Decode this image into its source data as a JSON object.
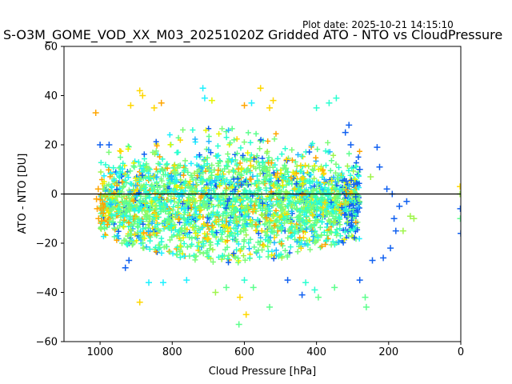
{
  "plot_date": "Plot date: 2025-10-21 14:15:10",
  "chart_data": {
    "type": "scatter",
    "title": "S-O3M_GOME_VOD_XX_M03_20251020Z Gridded ATO - NTO vs CloudPressure",
    "xlabel": "Cloud Pressure [hPa]",
    "ylabel": "ATO - NTO [DU]",
    "xlim": [
      1100,
      0
    ],
    "ylim": [
      -60,
      60
    ],
    "x_inverted": true,
    "xticks": [
      1000,
      800,
      600,
      400,
      200,
      0
    ],
    "yticks": [
      -60,
      -40,
      -20,
      0,
      20,
      40,
      60
    ],
    "xtick_labels": [
      "1000",
      "800",
      "600",
      "400",
      "200",
      "0"
    ],
    "ytick_labels": [
      "−60",
      "−40",
      "−20",
      "0",
      "20",
      "40",
      "60"
    ],
    "reference_line_y": 0,
    "marker": "+",
    "grid": false,
    "colormap_colors": [
      "#ffa500",
      "#ffd700",
      "#e5f500",
      "#9ef54a",
      "#7cfc78",
      "#5cff8c",
      "#2affd0",
      "#1ef0ff",
      "#20b8ff",
      "#1060f0"
    ],
    "bulk_region": {
      "pressure_range": [
        1000,
        280
      ],
      "ato_nto_center": -4,
      "ato_nto_spread_at_center": [
        -28,
        28
      ],
      "ato_nto_spread_at_edges": [
        -18,
        18
      ]
    },
    "points": [
      {
        "x": 890,
        "y": 42,
        "c": "#ffd700"
      },
      {
        "x": 882,
        "y": 40,
        "c": "#ffd700"
      },
      {
        "x": 715,
        "y": 43,
        "c": "#1ef0ff"
      },
      {
        "x": 555,
        "y": 43,
        "c": "#ffd700"
      },
      {
        "x": 710,
        "y": 39,
        "c": "#1ef0ff"
      },
      {
        "x": 690,
        "y": 38,
        "c": "#e5f500"
      },
      {
        "x": 520,
        "y": 38,
        "c": "#ffd700"
      },
      {
        "x": 830,
        "y": 37,
        "c": "#ffa500"
      },
      {
        "x": 850,
        "y": 35,
        "c": "#ffd700"
      },
      {
        "x": 915,
        "y": 36,
        "c": "#ffd700"
      },
      {
        "x": 600,
        "y": 36,
        "c": "#ffa500"
      },
      {
        "x": 580,
        "y": 37,
        "c": "#1ef0ff"
      },
      {
        "x": 530,
        "y": 35,
        "c": "#ffd700"
      },
      {
        "x": 345,
        "y": 39,
        "c": "#2affd0"
      },
      {
        "x": 365,
        "y": 37,
        "c": "#2affd0"
      },
      {
        "x": 400,
        "y": 35,
        "c": "#2affd0"
      },
      {
        "x": 1012,
        "y": 33,
        "c": "#ffa500"
      },
      {
        "x": 1000,
        "y": 20,
        "c": "#1060f0"
      },
      {
        "x": 975,
        "y": 20,
        "c": "#1060f0"
      },
      {
        "x": 310,
        "y": 28,
        "c": "#1060f0"
      },
      {
        "x": 320,
        "y": 25,
        "c": "#1060f0"
      },
      {
        "x": 305,
        "y": 20,
        "c": "#1060f0"
      },
      {
        "x": 232,
        "y": 19,
        "c": "#1060f0"
      },
      {
        "x": 280,
        "y": 10,
        "c": "#1060f0"
      },
      {
        "x": 225,
        "y": 11,
        "c": "#1060f0"
      },
      {
        "x": 250,
        "y": 7,
        "c": "#9ef54a"
      },
      {
        "x": 205,
        "y": 2,
        "c": "#1060f0"
      },
      {
        "x": 190,
        "y": 0,
        "c": "#1060f0"
      },
      {
        "x": 1005,
        "y": 2,
        "c": "#ffa500"
      },
      {
        "x": 1010,
        "y": -2,
        "c": "#ffa500"
      },
      {
        "x": 1008,
        "y": -6,
        "c": "#ffa500"
      },
      {
        "x": 1004,
        "y": -10,
        "c": "#ffa500"
      },
      {
        "x": 185,
        "y": -10,
        "c": "#1060f0"
      },
      {
        "x": 170,
        "y": -5,
        "c": "#1060f0"
      },
      {
        "x": 150,
        "y": -3,
        "c": "#1060f0"
      },
      {
        "x": 140,
        "y": -9,
        "c": "#9ef54a"
      },
      {
        "x": 130,
        "y": -10,
        "c": "#9ef54a"
      },
      {
        "x": 180,
        "y": -15,
        "c": "#1060f0"
      },
      {
        "x": 160,
        "y": -15,
        "c": "#9ef54a"
      },
      {
        "x": 195,
        "y": -22,
        "c": "#1060f0"
      },
      {
        "x": 215,
        "y": -26,
        "c": "#1060f0"
      },
      {
        "x": 245,
        "y": -27,
        "c": "#1060f0"
      },
      {
        "x": 280,
        "y": -35,
        "c": "#1060f0"
      },
      {
        "x": 265,
        "y": -42,
        "c": "#5cff8c"
      },
      {
        "x": 262,
        "y": -46,
        "c": "#5cff8c"
      },
      {
        "x": 350,
        "y": -38,
        "c": "#5cff8c"
      },
      {
        "x": 395,
        "y": -42,
        "c": "#5cff8c"
      },
      {
        "x": 405,
        "y": -39,
        "c": "#2affd0"
      },
      {
        "x": 430,
        "y": -36,
        "c": "#2affd0"
      },
      {
        "x": 440,
        "y": -41,
        "c": "#1060f0"
      },
      {
        "x": 480,
        "y": -35,
        "c": "#1060f0"
      },
      {
        "x": 530,
        "y": -46,
        "c": "#5cff8c"
      },
      {
        "x": 575,
        "y": -38,
        "c": "#5cff8c"
      },
      {
        "x": 600,
        "y": -35,
        "c": "#2affd0"
      },
      {
        "x": 612,
        "y": -42,
        "c": "#ffd700"
      },
      {
        "x": 595,
        "y": -49,
        "c": "#ffd700"
      },
      {
        "x": 615,
        "y": -53,
        "c": "#5cff8c"
      },
      {
        "x": 650,
        "y": -38,
        "c": "#5cff8c"
      },
      {
        "x": 680,
        "y": -40,
        "c": "#9ef54a"
      },
      {
        "x": 760,
        "y": -35,
        "c": "#1ef0ff"
      },
      {
        "x": 825,
        "y": -36,
        "c": "#1ef0ff"
      },
      {
        "x": 865,
        "y": -36,
        "c": "#1ef0ff"
      },
      {
        "x": 890,
        "y": -44,
        "c": "#ffd700"
      },
      {
        "x": 930,
        "y": -30,
        "c": "#1060f0"
      },
      {
        "x": 920,
        "y": -27,
        "c": "#1060f0"
      },
      {
        "x": 2,
        "y": 3,
        "c": "#ffd700"
      },
      {
        "x": 2,
        "y": 0,
        "c": "#9ef54a"
      },
      {
        "x": 1,
        "y": -6,
        "c": "#1060f0"
      },
      {
        "x": 1,
        "y": -10,
        "c": "#5cff8c"
      },
      {
        "x": 0,
        "y": -16,
        "c": "#1060f0"
      }
    ]
  }
}
